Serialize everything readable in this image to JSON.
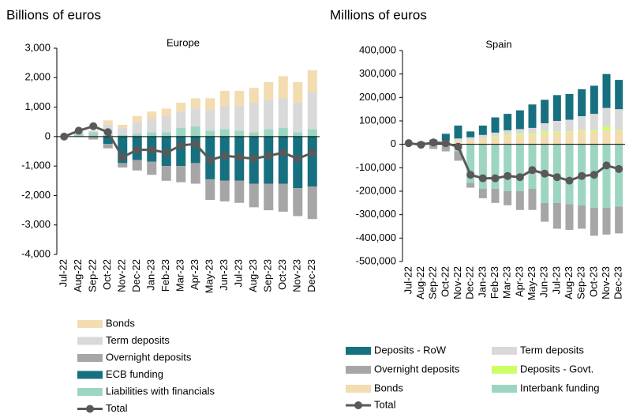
{
  "chart_data": [
    {
      "type": "bar",
      "stacked": true,
      "y_label": "Billions of euros",
      "title": "Europe",
      "categories": [
        "Jul-22",
        "Aug-22",
        "Sep-22",
        "Oct-22",
        "Nov-22",
        "Dec-22",
        "Jan-23",
        "Feb-23",
        "Mar-23",
        "Apr-23",
        "May-23",
        "Jun-23",
        "Jul-23",
        "Aug-23",
        "Sep-23",
        "Oct-23",
        "Nov-23",
        "Dec-23"
      ],
      "series": [
        {
          "name": "Bonds",
          "color": "#f2dcb0",
          "values": [
            0,
            0,
            0,
            150,
            100,
            200,
            250,
            250,
            300,
            350,
            400,
            500,
            500,
            500,
            600,
            750,
            700,
            750
          ]
        },
        {
          "name": "Term deposits",
          "color": "#d9d9d9",
          "values": [
            0,
            50,
            50,
            350,
            250,
            400,
            450,
            550,
            550,
            600,
            700,
            800,
            850,
            1000,
            1000,
            1000,
            1000,
            1250
          ]
        },
        {
          "name": "Overnight deposits",
          "color": "#a6a6a6",
          "values": [
            0,
            0,
            -100,
            -150,
            -150,
            -350,
            -450,
            -500,
            -550,
            -700,
            -700,
            -700,
            -750,
            -800,
            -900,
            -950,
            -950,
            -1100
          ]
        },
        {
          "name": "ECB funding",
          "color": "#17707f",
          "values": [
            0,
            0,
            0,
            -250,
            -900,
            -800,
            -850,
            -1000,
            -1000,
            -900,
            -1450,
            -1500,
            -1500,
            -1600,
            -1600,
            -1600,
            -1750,
            -1700
          ]
        },
        {
          "name": "Liabilities with financials",
          "color": "#9dd6c0",
          "values": [
            0,
            100,
            150,
            50,
            50,
            100,
            150,
            150,
            300,
            350,
            200,
            250,
            200,
            150,
            250,
            300,
            150,
            250
          ]
        }
      ],
      "line": {
        "name": "Total",
        "color": "#595959",
        "values": [
          0,
          200,
          350,
          150,
          -700,
          -450,
          -450,
          -550,
          -300,
          -250,
          -800,
          -650,
          -700,
          -750,
          -650,
          -550,
          -750,
          -550
        ]
      },
      "ylim": [
        -4000,
        3000
      ],
      "yticks": [
        {
          "value": -4000,
          "label": "-4,000"
        },
        {
          "value": -3000,
          "label": "-3,000"
        },
        {
          "value": -2000,
          "label": "-2,000"
        },
        {
          "value": -1000,
          "label": "-1,000"
        },
        0,
        {
          "value": 1000,
          "label": "1,000"
        },
        {
          "value": 2000,
          "label": "2,000"
        },
        {
          "value": 3000,
          "label": "3,000"
        }
      ],
      "legend_columns": 1
    },
    {
      "type": "bar",
      "stacked": true,
      "y_label": "Millions of euros",
      "title": "Spain",
      "categories": [
        "Jul-22",
        "Aug-22",
        "Sep-22",
        "Oct-22",
        "Nov-22",
        "Dec-22",
        "Jan-23",
        "Feb-23",
        "Mar-23",
        "Apr-23",
        "May-23",
        "Jun-23",
        "Jul-23",
        "Aug-23",
        "Sep-23",
        "Oct-23",
        "Nov-23",
        "Dec-23"
      ],
      "series": [
        {
          "name": "Deposits - RoW",
          "color": "#17707f",
          "values": [
            5000,
            10000,
            20000,
            30000,
            55000,
            25000,
            40000,
            65000,
            70000,
            80000,
            100000,
            100000,
            110000,
            110000,
            115000,
            120000,
            145000,
            125000
          ]
        },
        {
          "name": "Term deposits",
          "color": "#d9d9d9",
          "values": [
            0,
            0,
            0,
            5000,
            10000,
            10000,
            15000,
            15000,
            20000,
            20000,
            25000,
            35000,
            45000,
            50000,
            60000,
            70000,
            80000,
            90000
          ]
        },
        {
          "name": "Overnight deposits",
          "color": "#a6a6a6",
          "values": [
            0,
            0,
            -20000,
            -30000,
            -40000,
            -20000,
            -40000,
            -60000,
            -60000,
            -80000,
            -90000,
            -80000,
            -110000,
            -110000,
            -100000,
            -120000,
            -115000,
            -115000
          ]
        },
        {
          "name": "Deposits - Govt.",
          "color": "#ccff66",
          "values": [
            0,
            0,
            0,
            0,
            0,
            0,
            0,
            5000,
            5000,
            5000,
            5000,
            10000,
            5000,
            5000,
            5000,
            5000,
            15000,
            5000
          ]
        },
        {
          "name": "Bonds",
          "color": "#f2dcb0",
          "values": [
            0,
            0,
            0,
            10000,
            15000,
            20000,
            25000,
            30000,
            35000,
            40000,
            40000,
            45000,
            50000,
            50000,
            55000,
            55000,
            60000,
            55000
          ]
        },
        {
          "name": "Interbank funding",
          "color": "#9dd6c0",
          "values": [
            0,
            -10000,
            0,
            0,
            -30000,
            -165000,
            -190000,
            -190000,
            -200000,
            -200000,
            -190000,
            -250000,
            -250000,
            -255000,
            -260000,
            -270000,
            -270000,
            -265000
          ]
        }
      ],
      "line": {
        "name": "Total",
        "color": "#595959",
        "values": [
          5000,
          -2000,
          8000,
          5000,
          -10000,
          -130000,
          -145000,
          -145000,
          -135000,
          -140000,
          -110000,
          -125000,
          -140000,
          -155000,
          -135000,
          -130000,
          -90000,
          -105000
        ]
      },
      "ylim": [
        -500000,
        400000
      ],
      "yticks": [
        {
          "value": -500000,
          "label": "-500,000"
        },
        {
          "value": -400000,
          "label": "-400,000"
        },
        {
          "value": -300000,
          "label": "-300,000"
        },
        {
          "value": -200000,
          "label": "-200,000"
        },
        {
          "value": -100000,
          "label": "-100,000"
        },
        0,
        {
          "value": 100000,
          "label": "100,000"
        },
        {
          "value": 200000,
          "label": "200,000"
        },
        {
          "value": 300000,
          "label": "300,000"
        },
        {
          "value": 400000,
          "label": "400,000"
        }
      ],
      "legend_columns": 2
    }
  ]
}
